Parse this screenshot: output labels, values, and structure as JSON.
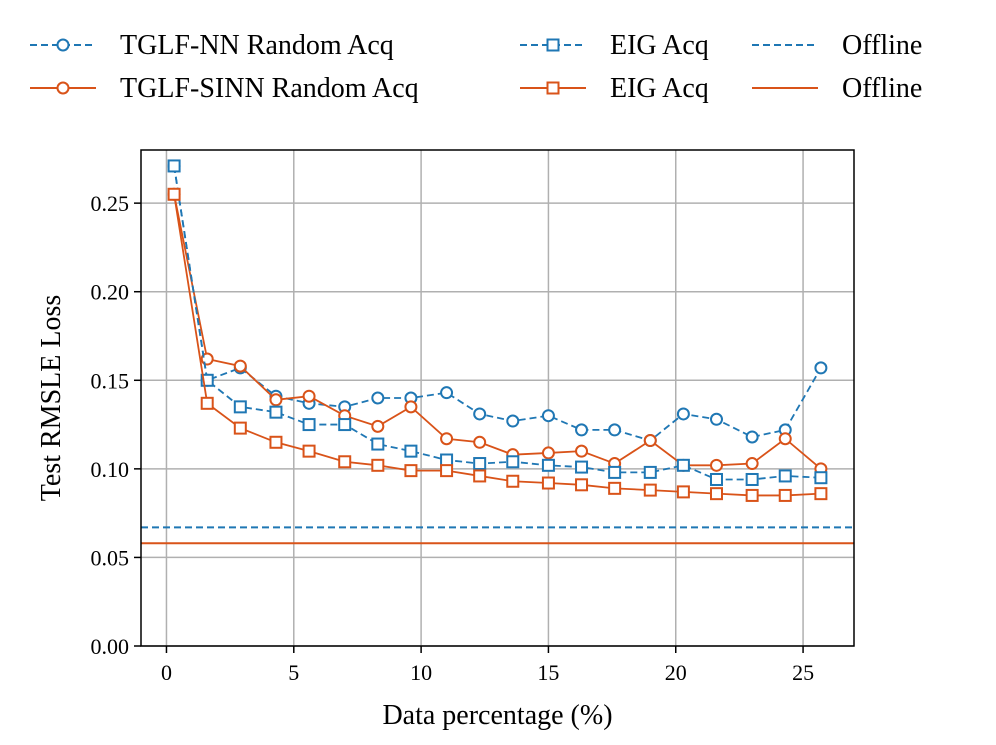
{
  "chart_data": {
    "type": "line",
    "title": "",
    "xlabel": "Data percentage (%)",
    "ylabel": "Test RMSLE Loss",
    "xlim": [
      -1,
      27
    ],
    "ylim": [
      0,
      0.28
    ],
    "xticks": [
      0,
      5,
      10,
      15,
      20,
      25
    ],
    "xtick_labels": [
      "0",
      "5",
      "10",
      "15",
      "20",
      "25"
    ],
    "yticks": [
      0,
      0.05,
      0.1,
      0.15,
      0.2,
      0.25
    ],
    "ytick_labels": [
      "0.00",
      "0.05",
      "0.10",
      "0.15",
      "0.20",
      "0.25"
    ],
    "grid": true,
    "legend_placement": "top, outside plot, 3 columns",
    "x": [
      0.3,
      1.6,
      2.9,
      4.3,
      5.6,
      7.0,
      8.3,
      9.6,
      11.0,
      12.3,
      13.6,
      15.0,
      16.3,
      17.6,
      19.0,
      20.3,
      21.6,
      23.0,
      24.3,
      25.7
    ],
    "series": [
      {
        "name": "TGLF-NN Random Acq",
        "color": "#1f77b4",
        "linestyle": "dashed",
        "marker": "circle",
        "values": [
          0.271,
          0.15,
          0.157,
          0.141,
          0.137,
          0.135,
          0.14,
          0.14,
          0.143,
          0.131,
          0.127,
          0.13,
          0.122,
          0.122,
          0.116,
          0.131,
          0.128,
          0.118,
          0.122,
          0.157
        ]
      },
      {
        "name": "TGLF-SINN Random Acq",
        "color": "#d95319",
        "linestyle": "solid",
        "marker": "circle",
        "values": [
          0.255,
          0.162,
          0.158,
          0.139,
          0.141,
          0.13,
          0.124,
          0.135,
          0.117,
          0.115,
          0.108,
          0.109,
          0.11,
          0.103,
          0.116,
          0.102,
          0.102,
          0.103,
          0.117,
          0.1
        ]
      },
      {
        "name": "EIG Acq",
        "color": "#1f77b4",
        "linestyle": "dashed",
        "marker": "square",
        "values": [
          0.271,
          0.15,
          0.135,
          0.132,
          0.125,
          0.125,
          0.114,
          0.11,
          0.105,
          0.103,
          0.104,
          0.102,
          0.101,
          0.098,
          0.098,
          0.102,
          0.094,
          0.094,
          0.096,
          0.095
        ]
      },
      {
        "name": "EIG Acq",
        "color": "#d95319",
        "linestyle": "solid",
        "marker": "square",
        "values": [
          0.255,
          0.137,
          0.123,
          0.115,
          0.11,
          0.104,
          0.102,
          0.099,
          0.099,
          0.096,
          0.093,
          0.092,
          0.091,
          0.089,
          0.088,
          0.087,
          0.086,
          0.085,
          0.085,
          0.086
        ]
      }
    ],
    "reference_lines": [
      {
        "name": "Offline",
        "color": "#1f77b4",
        "linestyle": "dashed",
        "y": 0.067
      },
      {
        "name": "Offline",
        "color": "#d95319",
        "linestyle": "solid",
        "y": 0.058
      }
    ]
  }
}
